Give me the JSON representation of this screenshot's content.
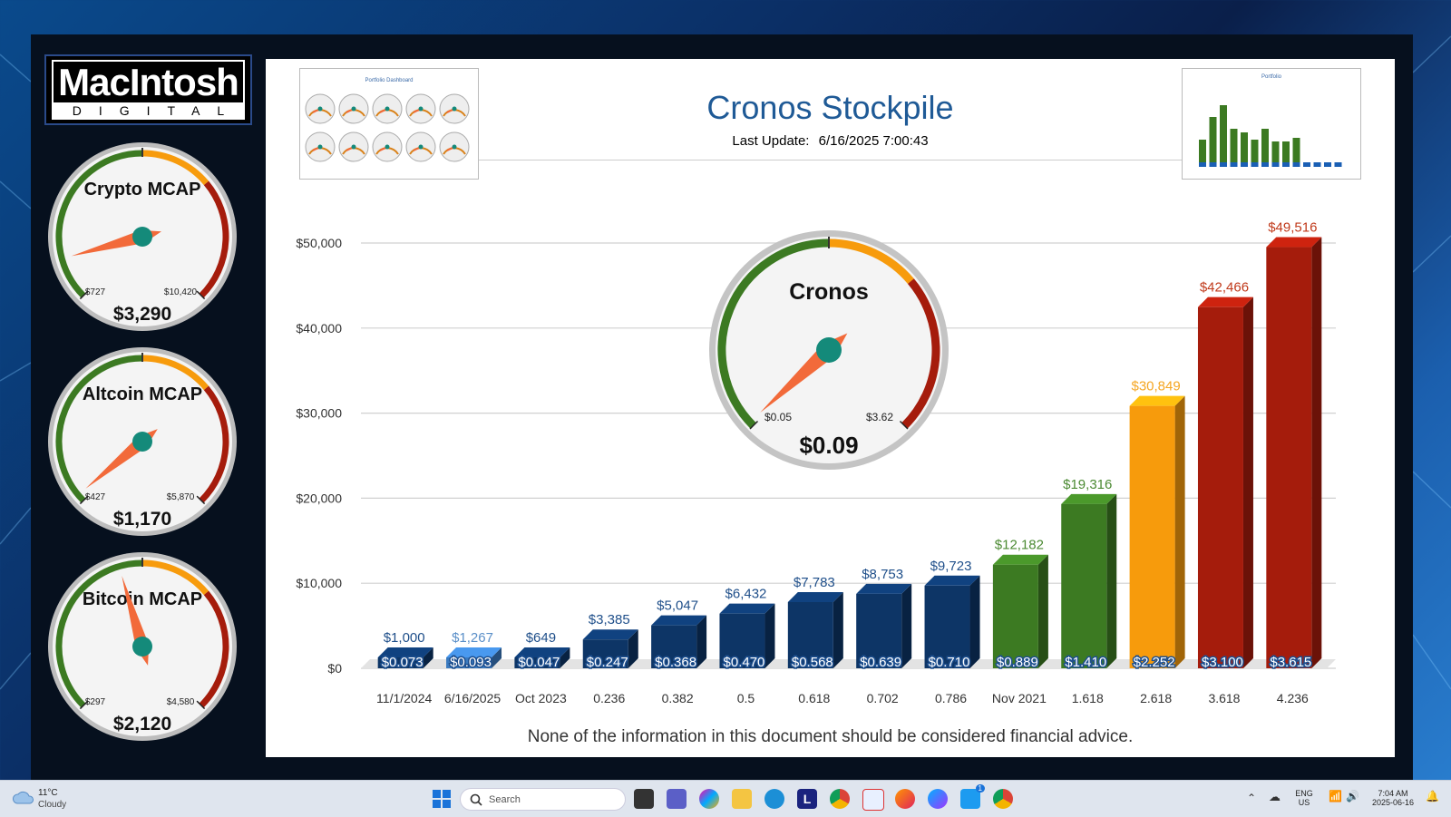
{
  "logo": {
    "main": "MacIntosh",
    "sub": "DIGITAL"
  },
  "side_gauges": [
    {
      "title": "Crypto MCAP",
      "min_label": "$727",
      "max_label": "$10,420",
      "value_label": "$3,290",
      "needle_fraction": 0.11
    },
    {
      "title": "Altcoin MCAP",
      "min_label": "$427",
      "max_label": "$5,870",
      "value_label": "$1,170",
      "needle_fraction": 0.02
    },
    {
      "title": "Bitcoin MCAP",
      "min_label": "$297",
      "max_label": "$4,580",
      "value_label": "$2,120",
      "needle_fraction": 0.44
    }
  ],
  "main_gauge": {
    "title": "Cronos",
    "min_label": "$0.05",
    "max_label": "$3.62",
    "value_label": "$0.09",
    "needle_fraction": 0.01
  },
  "header": {
    "title": "Cronos Stockpile",
    "last_update_label": "Last Update:",
    "last_update_value": "6/16/2025 7:00:43"
  },
  "thumbnails": {
    "left_title": "Portfolio Dashboard",
    "right_title": "Portfolio"
  },
  "disclaimer": "None of the information in this document should be considered financial advice.",
  "chart_data": {
    "type": "bar",
    "categories": [
      "11/1/2024",
      "6/16/2025",
      "Oct 2023",
      "0.236",
      "0.382",
      "0.5",
      "0.618",
      "0.702",
      "0.786",
      "Nov 2021",
      "1.618",
      "2.618",
      "3.618",
      "4.236"
    ],
    "values": [
      1000,
      1267,
      649,
      3385,
      5047,
      6432,
      7783,
      8753,
      9723,
      12182,
      19316,
      30849,
      42466,
      49516
    ],
    "value_labels": [
      "$1,000",
      "$1,267",
      "$649",
      "$3,385",
      "$5,047",
      "$6,432",
      "$7,783",
      "$8,753",
      "$9,723",
      "$12,182",
      "$19,316",
      "$30,849",
      "$42,466",
      "$49,516"
    ],
    "price_labels": [
      "$0.073",
      "$0.093",
      "$0.047",
      "$0.247",
      "$0.368",
      "$0.470",
      "$0.568",
      "$0.639",
      "$0.710",
      "$0.889",
      "$1.410",
      "$2.252",
      "$3.100",
      "$3.615"
    ],
    "bar_colors": [
      "#0d3566",
      "#3a7abf",
      "#0d3566",
      "#0d3566",
      "#0d3566",
      "#0d3566",
      "#0d3566",
      "#0d3566",
      "#0d3566",
      "#3c7a22",
      "#3c7a22",
      "#f79b0c",
      "#a51c0c",
      "#a51c0c"
    ],
    "label_colors": [
      "#1f4f8a",
      "#5a8fc8",
      "#1f4f8a",
      "#1f4f8a",
      "#1f4f8a",
      "#1f4f8a",
      "#1f4f8a",
      "#1f4f8a",
      "#1f4f8a",
      "#4b8a32",
      "#4b8a32",
      "#f5a623",
      "#c0391a",
      "#c0391a"
    ],
    "yticks": [
      "$0",
      "$10,000",
      "$20,000",
      "$30,000",
      "$40,000",
      "$50,000"
    ],
    "ylim": [
      0,
      50000
    ],
    "grid": true
  },
  "taskbar": {
    "weather_temp": "11°C",
    "weather_desc": "Cloudy",
    "search_placeholder": "Search",
    "lang": "ENG",
    "region": "US",
    "time": "7:04 AM",
    "date": "2025-06-16",
    "twitter_badge": "1"
  }
}
